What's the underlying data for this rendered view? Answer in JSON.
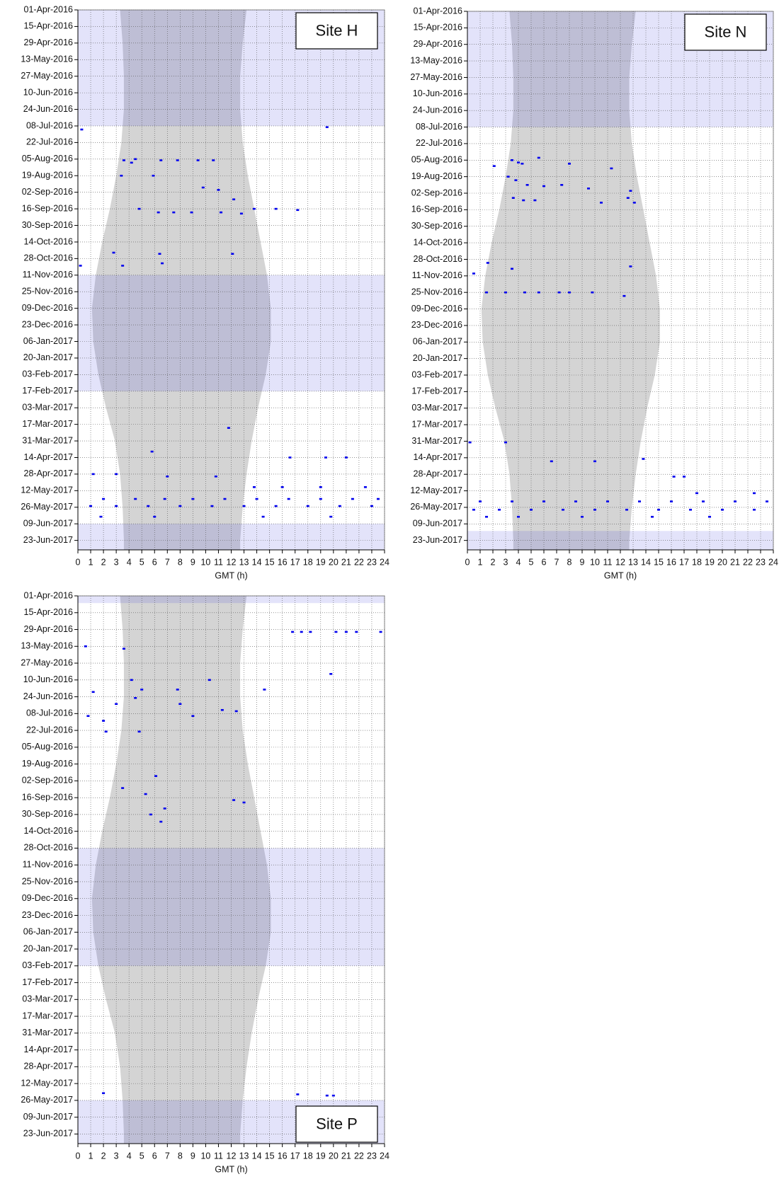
{
  "chart_data": [
    {
      "type": "scatter",
      "title": "Site H",
      "title_corner": "top-right",
      "xlabel": "GMT (h)",
      "xlim": [
        0,
        24
      ],
      "xticks": [
        0,
        1,
        2,
        3,
        4,
        5,
        6,
        7,
        8,
        9,
        10,
        11,
        12,
        13,
        14,
        15,
        16,
        17,
        18,
        19,
        20,
        21,
        22,
        23,
        24
      ],
      "ylim": [
        0,
        456
      ],
      "y_reversed": true,
      "grid": true,
      "yticks": [
        {
          "value": 0,
          "label": "01-Apr-2016"
        },
        {
          "value": 14,
          "label": "15-Apr-2016"
        },
        {
          "value": 28,
          "label": "29-Apr-2016"
        },
        {
          "value": 42,
          "label": "13-May-2016"
        },
        {
          "value": 56,
          "label": "27-May-2016"
        },
        {
          "value": 70,
          "label": "10-Jun-2016"
        },
        {
          "value": 84,
          "label": "24-Jun-2016"
        },
        {
          "value": 98,
          "label": "08-Jul-2016"
        },
        {
          "value": 112,
          "label": "22-Jul-2016"
        },
        {
          "value": 126,
          "label": "05-Aug-2016"
        },
        {
          "value": 140,
          "label": "19-Aug-2016"
        },
        {
          "value": 154,
          "label": "02-Sep-2016"
        },
        {
          "value": 168,
          "label": "16-Sep-2016"
        },
        {
          "value": 182,
          "label": "30-Sep-2016"
        },
        {
          "value": 196,
          "label": "14-Oct-2016"
        },
        {
          "value": 210,
          "label": "28-Oct-2016"
        },
        {
          "value": 224,
          "label": "11-Nov-2016"
        },
        {
          "value": 238,
          "label": "25-Nov-2016"
        },
        {
          "value": 252,
          "label": "09-Dec-2016"
        },
        {
          "value": 266,
          "label": "23-Dec-2016"
        },
        {
          "value": 280,
          "label": "06-Jan-2017"
        },
        {
          "value": 294,
          "label": "20-Jan-2017"
        },
        {
          "value": 308,
          "label": "03-Feb-2017"
        },
        {
          "value": 322,
          "label": "17-Feb-2017"
        },
        {
          "value": 336,
          "label": "03-Mar-2017"
        },
        {
          "value": 350,
          "label": "17-Mar-2017"
        },
        {
          "value": 364,
          "label": "31-Mar-2017"
        },
        {
          "value": 378,
          "label": "14-Apr-2017"
        },
        {
          "value": 392,
          "label": "28-Apr-2017"
        },
        {
          "value": 406,
          "label": "12-May-2017"
        },
        {
          "value": 420,
          "label": "26-May-2017"
        },
        {
          "value": 434,
          "label": "09-Jun-2017"
        },
        {
          "value": 448,
          "label": "23-Jun-2017"
        }
      ],
      "night": {
        "color": "#d4d4d4",
        "y": [
          0,
          28,
          56,
          84,
          112,
          140,
          168,
          196,
          224,
          252,
          280,
          308,
          336,
          364,
          392,
          420,
          448,
          456
        ],
        "start": [
          3.3,
          3.5,
          3.6,
          3.6,
          3.4,
          3.0,
          2.5,
          1.9,
          1.4,
          1.1,
          1.2,
          1.6,
          2.2,
          2.9,
          3.3,
          3.5,
          3.6,
          3.6
        ],
        "end": [
          13.2,
          12.9,
          12.7,
          12.7,
          12.9,
          13.3,
          13.8,
          14.3,
          14.8,
          15.1,
          15.1,
          14.7,
          14.1,
          13.6,
          13.2,
          12.9,
          12.7,
          12.7
        ]
      },
      "gaps": [
        [
          0,
          98
        ],
        [
          224,
          322
        ],
        [
          434,
          456
        ]
      ],
      "gap_color": "rgba(70,70,220,0.15)",
      "color": "#0000ee",
      "x": [
        4.2,
        3.6,
        4.5,
        6.5,
        7.8,
        9.4,
        10.6,
        3.4,
        5.9,
        9.8,
        11.0,
        12.2,
        4.8,
        6.3,
        7.5,
        8.9,
        11.2,
        12.8,
        13.8,
        15.5,
        17.2,
        2.8,
        6.4,
        12.1,
        6.6,
        0.2,
        3.5,
        11.8,
        5.8,
        16.6,
        19.4,
        21.0,
        1.2,
        3.0,
        7.0,
        10.8,
        13.8,
        16.0,
        19.0,
        22.5,
        2.0,
        4.5,
        6.8,
        9.0,
        11.5,
        14.0,
        16.5,
        19.0,
        21.5,
        23.5,
        1.0,
        3.0,
        5.5,
        8.0,
        10.5,
        13.0,
        15.5,
        18.0,
        20.5,
        23.0,
        1.8,
        6.0,
        14.5,
        19.8,
        19.5,
        0.3
      ],
      "y": [
        129,
        127,
        126,
        127,
        127,
        127,
        127,
        140,
        140,
        150,
        152,
        160,
        168,
        171,
        171,
        171,
        171,
        172,
        168,
        168,
        169,
        205,
        206,
        206,
        214,
        216,
        216,
        353,
        373,
        378,
        378,
        378,
        392,
        392,
        394,
        394,
        403,
        403,
        403,
        403,
        413,
        413,
        413,
        413,
        413,
        413,
        413,
        413,
        413,
        413,
        419,
        419,
        419,
        419,
        419,
        419,
        419,
        419,
        419,
        419,
        428,
        428,
        428,
        428,
        99,
        101
      ]
    },
    {
      "type": "scatter",
      "title": "Site N",
      "title_corner": "top-right",
      "xlabel": "GMT (h)",
      "xlim": [
        0,
        24
      ],
      "xticks": [
        0,
        1,
        2,
        3,
        4,
        5,
        6,
        7,
        8,
        9,
        10,
        11,
        12,
        13,
        14,
        15,
        16,
        17,
        18,
        19,
        20,
        21,
        22,
        23,
        24
      ],
      "ylim": [
        0,
        456
      ],
      "y_reversed": true,
      "grid": true,
      "yticks": [
        {
          "value": 0,
          "label": "01-Apr-2016"
        },
        {
          "value": 14,
          "label": "15-Apr-2016"
        },
        {
          "value": 28,
          "label": "29-Apr-2016"
        },
        {
          "value": 42,
          "label": "13-May-2016"
        },
        {
          "value": 56,
          "label": "27-May-2016"
        },
        {
          "value": 70,
          "label": "10-Jun-2016"
        },
        {
          "value": 84,
          "label": "24-Jun-2016"
        },
        {
          "value": 98,
          "label": "08-Jul-2016"
        },
        {
          "value": 112,
          "label": "22-Jul-2016"
        },
        {
          "value": 126,
          "label": "05-Aug-2016"
        },
        {
          "value": 140,
          "label": "19-Aug-2016"
        },
        {
          "value": 154,
          "label": "02-Sep-2016"
        },
        {
          "value": 168,
          "label": "16-Sep-2016"
        },
        {
          "value": 182,
          "label": "30-Sep-2016"
        },
        {
          "value": 196,
          "label": "14-Oct-2016"
        },
        {
          "value": 210,
          "label": "28-Oct-2016"
        },
        {
          "value": 224,
          "label": "11-Nov-2016"
        },
        {
          "value": 238,
          "label": "25-Nov-2016"
        },
        {
          "value": 252,
          "label": "09-Dec-2016"
        },
        {
          "value": 266,
          "label": "23-Dec-2016"
        },
        {
          "value": 280,
          "label": "06-Jan-2017"
        },
        {
          "value": 294,
          "label": "20-Jan-2017"
        },
        {
          "value": 308,
          "label": "03-Feb-2017"
        },
        {
          "value": 322,
          "label": "17-Feb-2017"
        },
        {
          "value": 336,
          "label": "03-Mar-2017"
        },
        {
          "value": 350,
          "label": "17-Mar-2017"
        },
        {
          "value": 364,
          "label": "31-Mar-2017"
        },
        {
          "value": 378,
          "label": "14-Apr-2017"
        },
        {
          "value": 392,
          "label": "28-Apr-2017"
        },
        {
          "value": 406,
          "label": "12-May-2017"
        },
        {
          "value": 420,
          "label": "26-May-2017"
        },
        {
          "value": 434,
          "label": "09-Jun-2017"
        },
        {
          "value": 448,
          "label": "23-Jun-2017"
        }
      ],
      "night": {
        "color": "#d4d4d4",
        "y": [
          0,
          28,
          56,
          84,
          112,
          140,
          168,
          196,
          224,
          252,
          280,
          308,
          336,
          364,
          392,
          420,
          448,
          456
        ],
        "start": [
          3.3,
          3.5,
          3.6,
          3.6,
          3.4,
          3.0,
          2.5,
          1.9,
          1.4,
          1.1,
          1.2,
          1.6,
          2.2,
          2.9,
          3.3,
          3.5,
          3.6,
          3.6
        ],
        "end": [
          13.2,
          12.9,
          12.7,
          12.7,
          12.9,
          13.3,
          13.8,
          14.3,
          14.8,
          15.1,
          15.1,
          14.7,
          14.1,
          13.6,
          13.2,
          12.9,
          12.7,
          12.7
        ]
      },
      "gaps": [
        [
          0,
          98
        ],
        [
          440,
          456
        ]
      ],
      "gap_color": "rgba(70,70,220,0.15)",
      "color": "#0000ee",
      "x": [
        3.5,
        4.0,
        4.3,
        2.1,
        5.6,
        8.0,
        11.3,
        3.2,
        3.8,
        4.7,
        6.0,
        7.4,
        9.5,
        12.8,
        3.6,
        4.4,
        5.3,
        10.5,
        12.6,
        13.1,
        1.5,
        3.0,
        4.5,
        5.6,
        7.2,
        8.0,
        9.8,
        12.3,
        0.5,
        3.5,
        1.6,
        12.8,
        0.2,
        3.0,
        6.6,
        10.0,
        13.8,
        16.2,
        17.0,
        18.0,
        22.5,
        1.0,
        3.5,
        6.0,
        8.5,
        11.0,
        13.5,
        16.0,
        18.5,
        21.0,
        23.5,
        0.5,
        2.5,
        5.0,
        7.5,
        10.0,
        12.5,
        15.0,
        17.5,
        20.0,
        22.5,
        1.5,
        4.0,
        9.0,
        14.5,
        19.0
      ],
      "y": [
        126,
        128,
        129,
        131,
        124,
        129,
        133,
        140,
        143,
        147,
        148,
        147,
        150,
        152,
        158,
        160,
        160,
        162,
        158,
        162,
        238,
        238,
        238,
        238,
        238,
        238,
        238,
        241,
        222,
        218,
        213,
        216,
        365,
        365,
        381,
        381,
        379,
        394,
        394,
        408,
        408,
        415,
        415,
        415,
        415,
        415,
        415,
        415,
        415,
        415,
        415,
        422,
        422,
        422,
        422,
        422,
        422,
        422,
        422,
        422,
        422,
        428,
        428,
        428,
        428,
        428
      ]
    },
    {
      "type": "scatter",
      "title": "Site P",
      "title_corner": "bottom-right",
      "xlabel": "GMT (h)",
      "xlim": [
        0,
        24
      ],
      "xticks": [
        0,
        1,
        2,
        3,
        4,
        5,
        6,
        7,
        8,
        9,
        10,
        11,
        12,
        13,
        14,
        15,
        16,
        17,
        18,
        19,
        20,
        21,
        22,
        23,
        24
      ],
      "ylim": [
        0,
        456
      ],
      "y_reversed": true,
      "grid": true,
      "yticks": [
        {
          "value": 0,
          "label": "01-Apr-2016"
        },
        {
          "value": 14,
          "label": "15-Apr-2016"
        },
        {
          "value": 28,
          "label": "29-Apr-2016"
        },
        {
          "value": 42,
          "label": "13-May-2016"
        },
        {
          "value": 56,
          "label": "27-May-2016"
        },
        {
          "value": 70,
          "label": "10-Jun-2016"
        },
        {
          "value": 84,
          "label": "24-Jun-2016"
        },
        {
          "value": 98,
          "label": "08-Jul-2016"
        },
        {
          "value": 112,
          "label": "22-Jul-2016"
        },
        {
          "value": 126,
          "label": "05-Aug-2016"
        },
        {
          "value": 140,
          "label": "19-Aug-2016"
        },
        {
          "value": 154,
          "label": "02-Sep-2016"
        },
        {
          "value": 168,
          "label": "16-Sep-2016"
        },
        {
          "value": 182,
          "label": "30-Sep-2016"
        },
        {
          "value": 196,
          "label": "14-Oct-2016"
        },
        {
          "value": 210,
          "label": "28-Oct-2016"
        },
        {
          "value": 224,
          "label": "11-Nov-2016"
        },
        {
          "value": 238,
          "label": "25-Nov-2016"
        },
        {
          "value": 252,
          "label": "09-Dec-2016"
        },
        {
          "value": 266,
          "label": "23-Dec-2016"
        },
        {
          "value": 280,
          "label": "06-Jan-2017"
        },
        {
          "value": 294,
          "label": "20-Jan-2017"
        },
        {
          "value": 308,
          "label": "03-Feb-2017"
        },
        {
          "value": 322,
          "label": "17-Feb-2017"
        },
        {
          "value": 336,
          "label": "03-Mar-2017"
        },
        {
          "value": 350,
          "label": "17-Mar-2017"
        },
        {
          "value": 364,
          "label": "31-Mar-2017"
        },
        {
          "value": 378,
          "label": "14-Apr-2017"
        },
        {
          "value": 392,
          "label": "28-Apr-2017"
        },
        {
          "value": 406,
          "label": "12-May-2017"
        },
        {
          "value": 420,
          "label": "26-May-2017"
        },
        {
          "value": 434,
          "label": "09-Jun-2017"
        },
        {
          "value": 448,
          "label": "23-Jun-2017"
        }
      ],
      "night": {
        "color": "#d4d4d4",
        "y": [
          0,
          28,
          56,
          84,
          112,
          140,
          168,
          196,
          224,
          252,
          280,
          308,
          336,
          364,
          392,
          420,
          448,
          456
        ],
        "start": [
          3.3,
          3.5,
          3.6,
          3.6,
          3.4,
          3.0,
          2.5,
          1.9,
          1.4,
          1.1,
          1.2,
          1.6,
          2.2,
          2.9,
          3.3,
          3.5,
          3.6,
          3.6
        ],
        "end": [
          13.2,
          12.9,
          12.7,
          12.7,
          12.9,
          13.3,
          13.8,
          14.3,
          14.8,
          15.1,
          15.1,
          14.7,
          14.1,
          13.6,
          13.2,
          12.9,
          12.7,
          12.7
        ]
      },
      "gaps": [
        [
          0,
          6
        ],
        [
          210,
          308
        ],
        [
          420,
          456
        ]
      ],
      "gap_color": "rgba(70,70,220,0.15)",
      "color": "#0000ee",
      "x": [
        0.6,
        3.6,
        4.2,
        5.0,
        1.2,
        7.8,
        10.3,
        14.6,
        16.8,
        17.5,
        18.2,
        20.2,
        21.0,
        21.8,
        23.7,
        19.8,
        3.0,
        4.5,
        2.0,
        9.0,
        11.3,
        12.4,
        8.0,
        0.8,
        2.2,
        4.8,
        6.1,
        3.5,
        5.3,
        12.2,
        5.7,
        6.8,
        2.0,
        17.2,
        19.5,
        20.0,
        13.0,
        6.5
      ],
      "y": [
        42,
        44,
        70,
        78,
        80,
        78,
        70,
        78,
        30,
        30,
        30,
        30,
        30,
        30,
        30,
        65,
        90,
        85,
        104,
        100,
        95,
        96,
        90,
        100,
        113,
        113,
        150,
        160,
        165,
        170,
        182,
        177,
        414,
        415,
        416,
        416,
        172,
        188
      ]
    }
  ]
}
